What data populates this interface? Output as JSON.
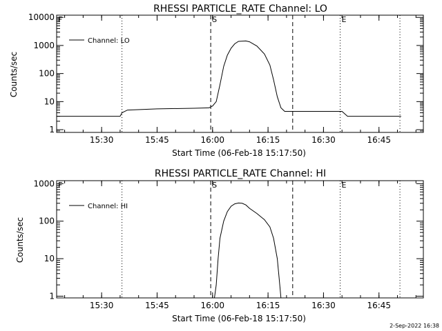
{
  "footer": "2-Sep-2022 16:38",
  "chart_data": [
    {
      "type": "line",
      "title": "RHESSI PARTICLE_RATE Channel: LO",
      "ylabel": "Counts/sec",
      "xlabel": "Start Time (06-Feb-18 15:17:50)",
      "yscale": "log",
      "ylim": [
        0.8,
        12000
      ],
      "xlim": [
        "15:17:50",
        "16:57:00"
      ],
      "yticks": [
        "1",
        "10",
        "100",
        "1000",
        "10000"
      ],
      "xticks": [
        "15:30",
        "15:45",
        "16:00",
        "16:15",
        "16:30",
        "16:45"
      ],
      "legend": "Channel: LO",
      "markers": [
        {
          "label": "F",
          "time": "15:17:50",
          "style": "dotted"
        },
        {
          "label": "",
          "time": "15:35:30",
          "style": "dotted"
        },
        {
          "label": "S",
          "time": "15:59:30",
          "style": "dashed"
        },
        {
          "label": "",
          "time": "16:21:40",
          "style": "dashed"
        },
        {
          "label": "E",
          "time": "16:34:30",
          "style": "dotted"
        },
        {
          "label": "",
          "time": "16:50:40",
          "style": "dotted"
        }
      ],
      "series": [
        {
          "name": "Channel: LO",
          "points": [
            [
              "15:17:50",
              3
            ],
            [
              "15:22:00",
              3
            ],
            [
              "15:27:00",
              3
            ],
            [
              "15:32:00",
              3
            ],
            [
              "15:35:00",
              3
            ],
            [
              "15:35:30",
              4
            ],
            [
              "15:37:00",
              5
            ],
            [
              "15:45:00",
              5.5
            ],
            [
              "15:55:00",
              5.8
            ],
            [
              "15:59:00",
              6
            ],
            [
              "16:00:00",
              7
            ],
            [
              "16:01:00",
              10
            ],
            [
              "16:02:00",
              40
            ],
            [
              "16:03:00",
              180
            ],
            [
              "16:04:00",
              450
            ],
            [
              "16:05:00",
              800
            ],
            [
              "16:06:00",
              1150
            ],
            [
              "16:07:00",
              1400
            ],
            [
              "16:09:00",
              1450
            ],
            [
              "16:10:00",
              1350
            ],
            [
              "16:12:00",
              950
            ],
            [
              "16:14:00",
              500
            ],
            [
              "16:15:30",
              200
            ],
            [
              "16:16:30",
              60
            ],
            [
              "16:17:30",
              15
            ],
            [
              "16:18:30",
              6
            ],
            [
              "16:19:30",
              4.5
            ],
            [
              "16:25:00",
              4.5
            ],
            [
              "16:30:00",
              4.5
            ],
            [
              "16:35:00",
              4.5
            ],
            [
              "16:36:30",
              3
            ],
            [
              "16:45:00",
              3
            ],
            [
              "16:51:00",
              3
            ]
          ]
        }
      ]
    },
    {
      "type": "line",
      "title": "RHESSI PARTICLE_RATE Channel: HI",
      "ylabel": "Counts/sec",
      "xlabel": "Start Time (06-Feb-18 15:17:50)",
      "yscale": "log",
      "ylim": [
        0.9,
        1200
      ],
      "xlim": [
        "15:17:50",
        "16:57:00"
      ],
      "yticks": [
        "1",
        "10",
        "100",
        "1000"
      ],
      "xticks": [
        "15:30",
        "15:45",
        "16:00",
        "16:15",
        "16:30",
        "16:45"
      ],
      "legend": "Channel: HI",
      "markers": [
        {
          "label": "F",
          "time": "15:17:50",
          "style": "dotted"
        },
        {
          "label": "",
          "time": "15:35:30",
          "style": "dotted"
        },
        {
          "label": "S",
          "time": "15:59:30",
          "style": "dashed"
        },
        {
          "label": "",
          "time": "16:21:40",
          "style": "dashed"
        },
        {
          "label": "E",
          "time": "16:34:30",
          "style": "dotted"
        },
        {
          "label": "",
          "time": "16:50:40",
          "style": "dotted"
        }
      ],
      "series": [
        {
          "name": "Channel: HI",
          "points": [
            [
              "16:00:30",
              0.9
            ],
            [
              "16:01:00",
              2
            ],
            [
              "16:01:30",
              10
            ],
            [
              "16:02:00",
              35
            ],
            [
              "16:03:00",
              100
            ],
            [
              "16:04:00",
              180
            ],
            [
              "16:05:00",
              250
            ],
            [
              "16:06:00",
              290
            ],
            [
              "16:07:00",
              305
            ],
            [
              "16:08:00",
              300
            ],
            [
              "16:09:00",
              270
            ],
            [
              "16:10:00",
              220
            ],
            [
              "16:12:00",
              160
            ],
            [
              "16:14:00",
              110
            ],
            [
              "16:15:30",
              70
            ],
            [
              "16:16:30",
              35
            ],
            [
              "16:17:30",
              10
            ],
            [
              "16:18:00",
              3
            ],
            [
              "16:18:30",
              0.9
            ]
          ]
        }
      ]
    }
  ]
}
